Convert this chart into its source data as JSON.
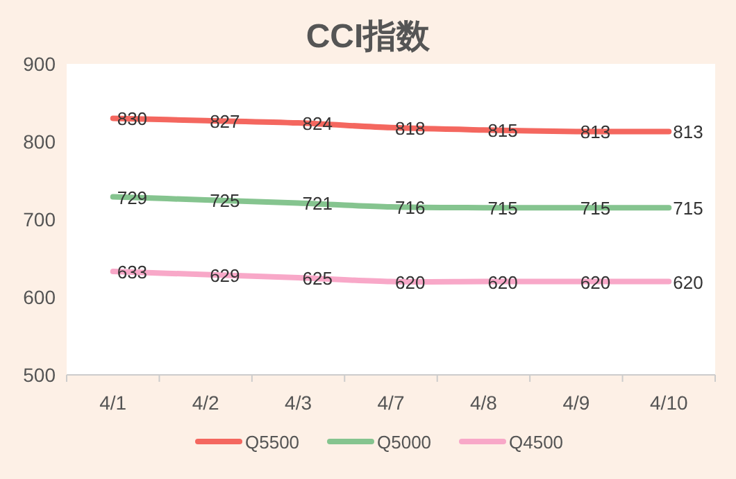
{
  "chart_data": {
    "type": "line",
    "title": "CCI指数",
    "categories": [
      "4/1",
      "4/2",
      "4/3",
      "4/7",
      "4/8",
      "4/9",
      "4/10"
    ],
    "series": [
      {
        "name": "Q5500",
        "color": "#f4675f",
        "values": [
          830,
          827,
          824,
          818,
          815,
          813,
          813
        ]
      },
      {
        "name": "Q5000",
        "color": "#85c48f",
        "values": [
          729,
          725,
          721,
          716,
          715,
          715,
          715
        ]
      },
      {
        "name": "Q4500",
        "color": "#f8a8c8",
        "values": [
          633,
          629,
          625,
          620,
          620,
          620,
          620
        ]
      }
    ],
    "ylim": [
      500,
      900
    ],
    "yticks": [
      500,
      600,
      700,
      800,
      900
    ],
    "grid": false,
    "legend": "bottom",
    "data_labels": true,
    "line_style": "solid",
    "marker": "none"
  }
}
